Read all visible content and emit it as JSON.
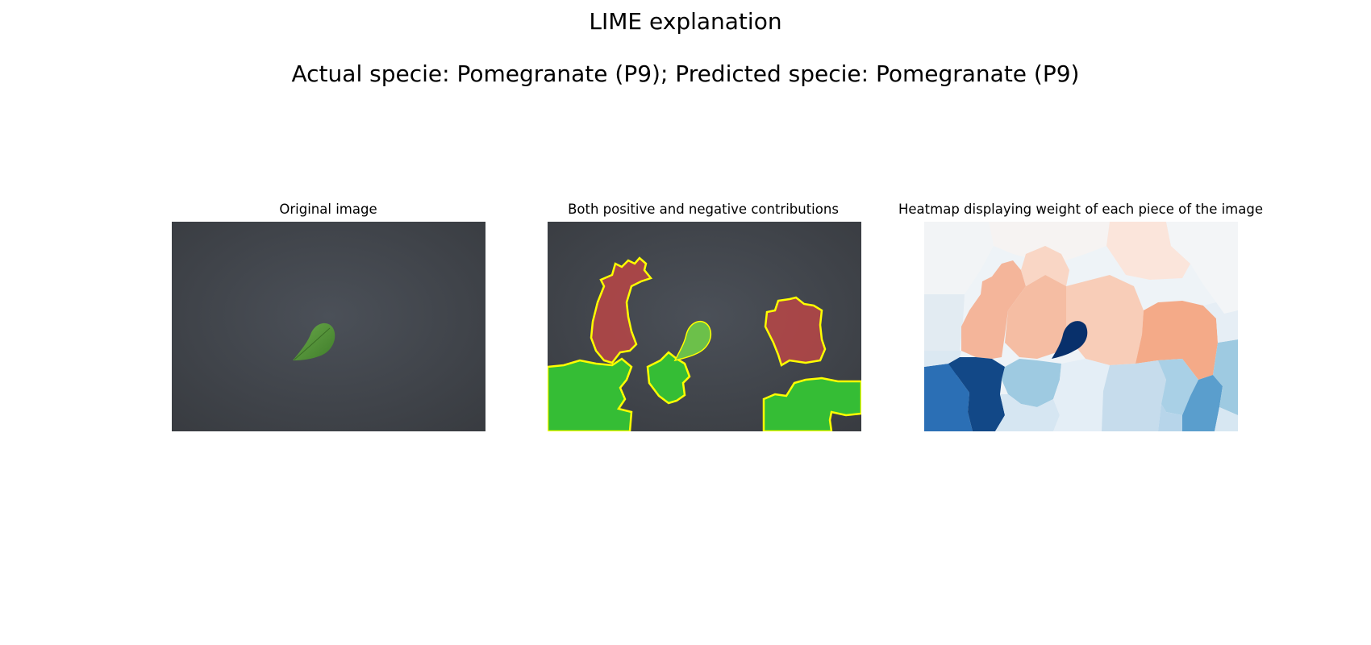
{
  "figure": {
    "title": "LIME explanation",
    "subtitle": "Actual specie: Pomegranate (P9); Predicted specie: Pomegranate (P9)"
  },
  "panels": [
    {
      "title": "Original image"
    },
    {
      "title": "Both positive and negative contributions"
    },
    {
      "title": "Heatmap displaying weight of each piece of the image"
    }
  ],
  "colors": {
    "background_dark": "#4a4e55",
    "leaf": "#5d9a3c",
    "positive": "#35bd35",
    "negative": "#b94646",
    "boundary": "#ffff00",
    "heat_strong_blue": "#08306b",
    "heat_orange": "#f4b08f"
  }
}
